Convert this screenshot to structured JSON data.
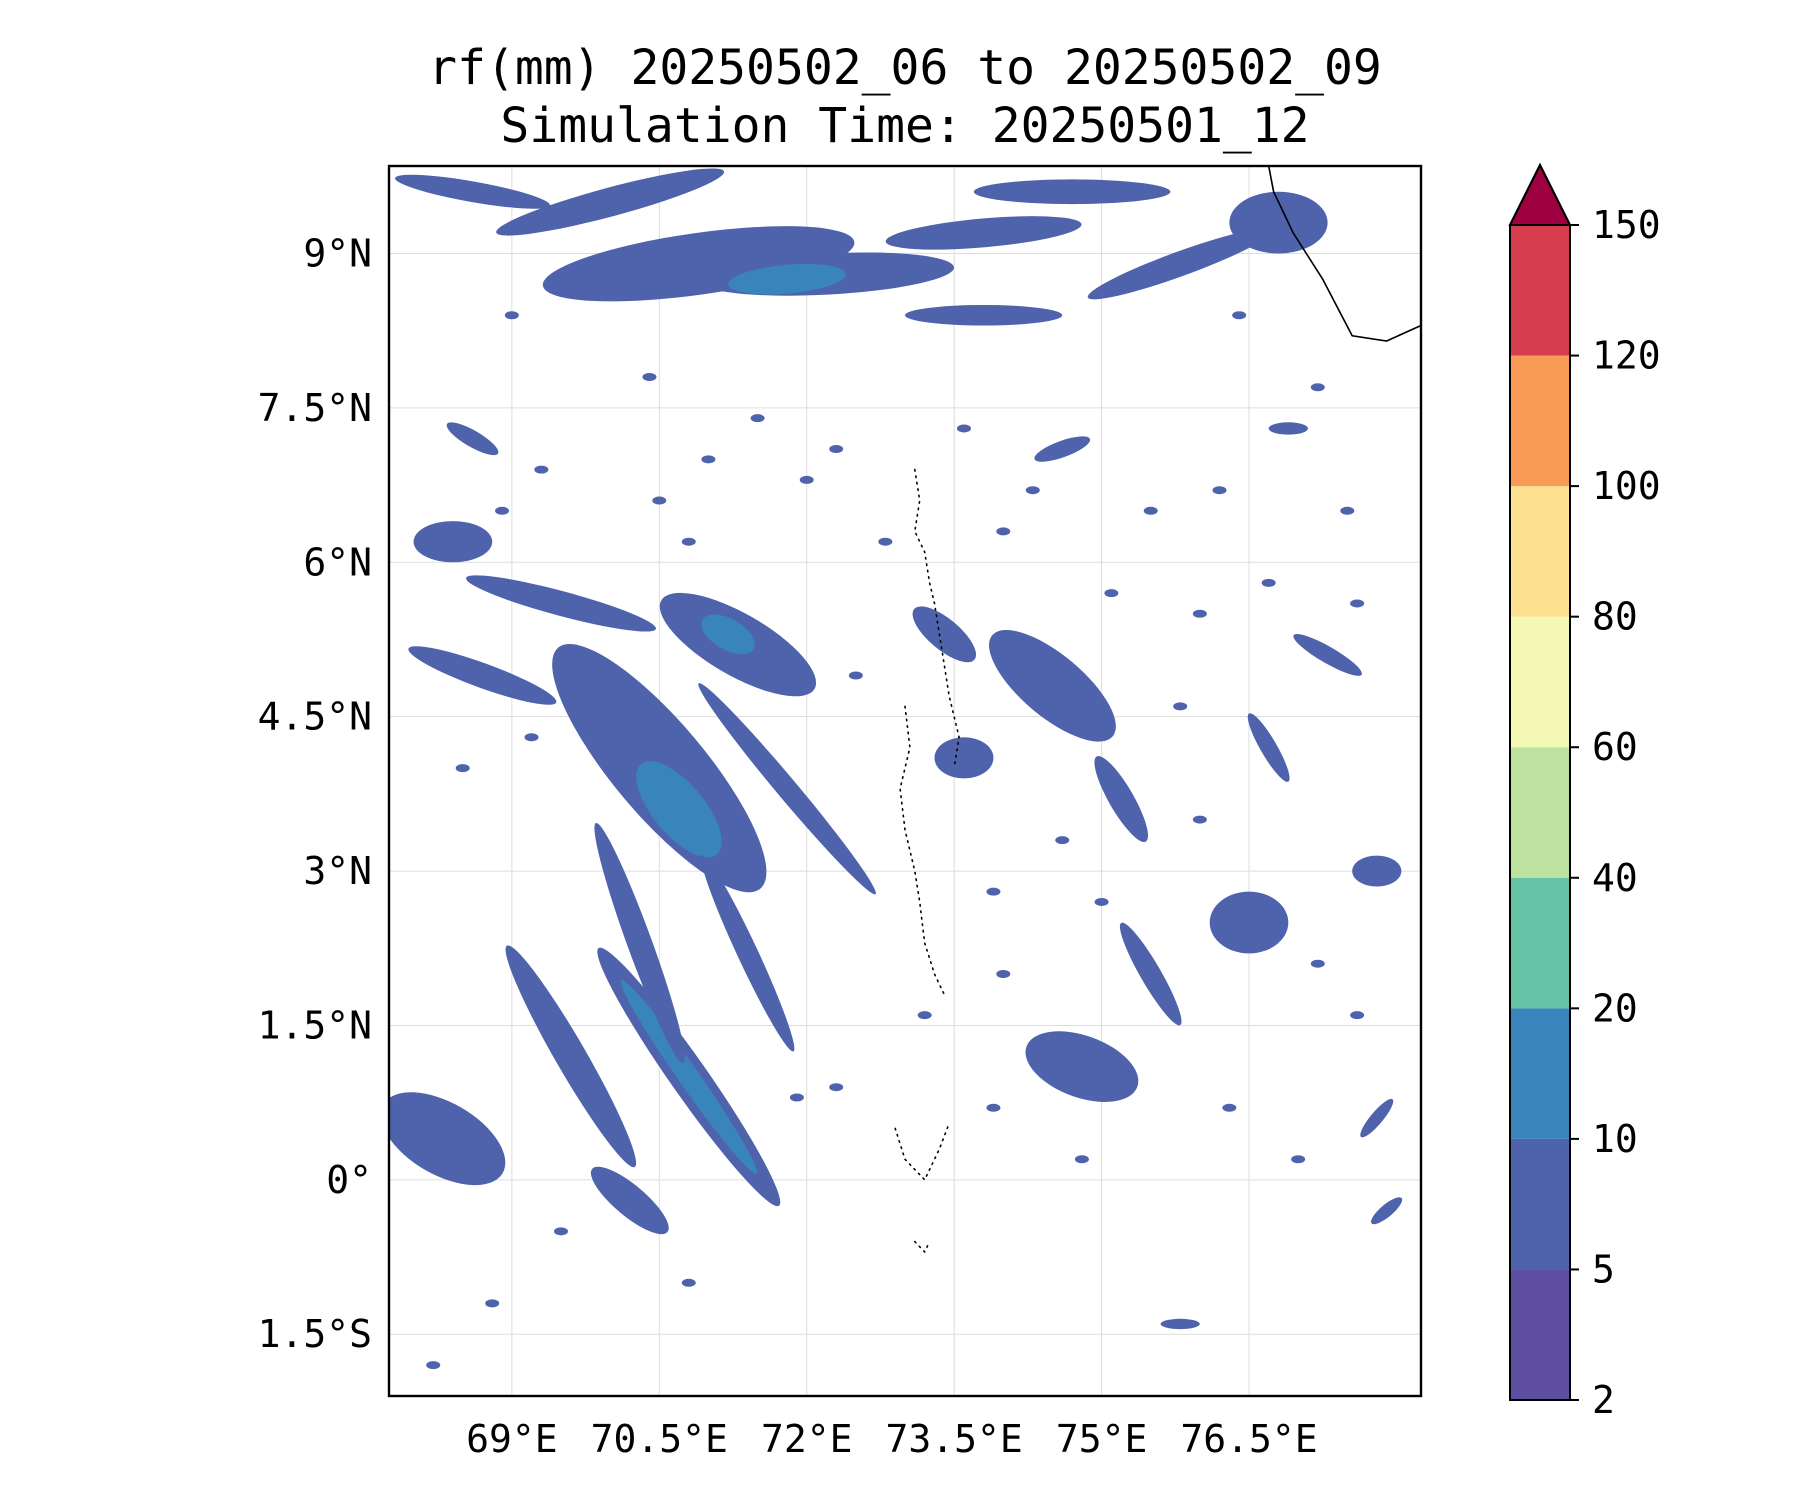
{
  "title": {
    "line1": "rf(mm) 20250502_06 to 20250502_09",
    "line2": "Simulation Time: 20250501_12"
  },
  "map": {
    "lon_range": [
      67.75,
      78.25
    ],
    "lat_range": [
      -2.1,
      9.85
    ],
    "lon_ticks": [
      {
        "value": 69.0,
        "label": "69°E"
      },
      {
        "value": 70.5,
        "label": "70.5°E"
      },
      {
        "value": 72.0,
        "label": "72°E"
      },
      {
        "value": 73.5,
        "label": "73.5°E"
      },
      {
        "value": 75.0,
        "label": "75°E"
      },
      {
        "value": 76.5,
        "label": "76.5°E"
      }
    ],
    "lat_ticks": [
      {
        "value": 9.0,
        "label": "9°N"
      },
      {
        "value": 7.5,
        "label": "7.5°N"
      },
      {
        "value": 6.0,
        "label": "6°N"
      },
      {
        "value": 4.5,
        "label": "4.5°N"
      },
      {
        "value": 3.0,
        "label": "3°N"
      },
      {
        "value": 1.5,
        "label": "1.5°N"
      },
      {
        "value": 0.0,
        "label": "0°"
      },
      {
        "value": -1.5,
        "label": "1.5°S"
      }
    ],
    "gridlines": true,
    "coastline_india": [
      [
        76.7,
        9.85
      ],
      [
        76.75,
        9.6
      ],
      [
        76.95,
        9.2
      ],
      [
        77.25,
        8.75
      ],
      [
        77.55,
        8.2
      ],
      [
        77.9,
        8.15
      ],
      [
        78.25,
        8.3
      ]
    ],
    "maldives_atoll_lines": [
      [
        [
          73.1,
          6.9
        ],
        [
          73.15,
          6.6
        ],
        [
          73.1,
          6.3
        ],
        [
          73.2,
          6.1
        ],
        [
          73.25,
          5.8
        ],
        [
          73.3,
          5.6
        ],
        [
          73.35,
          5.3
        ],
        [
          73.4,
          5.0
        ],
        [
          73.45,
          4.7
        ],
        [
          73.55,
          4.3
        ],
        [
          73.5,
          4.0
        ]
      ],
      [
        [
          73.0,
          4.6
        ],
        [
          73.05,
          4.2
        ],
        [
          72.95,
          3.8
        ],
        [
          73.0,
          3.4
        ],
        [
          73.1,
          3.0
        ],
        [
          73.15,
          2.7
        ],
        [
          73.2,
          2.3
        ],
        [
          73.3,
          2.0
        ],
        [
          73.4,
          1.8
        ]
      ],
      [
        [
          72.9,
          0.5
        ],
        [
          73.0,
          0.2
        ],
        [
          73.2,
          0.0
        ],
        [
          73.35,
          0.3
        ],
        [
          73.45,
          0.55
        ]
      ],
      [
        [
          73.1,
          -0.6
        ],
        [
          73.2,
          -0.7
        ],
        [
          73.25,
          -0.6
        ]
      ]
    ],
    "rain_cells": [
      {
        "lon": 70.9,
        "lat": 8.9,
        "rx": 1.6,
        "ry": 0.3,
        "rot": -8,
        "level": 1
      },
      {
        "lon": 72.2,
        "lat": 8.8,
        "rx": 1.3,
        "ry": 0.2,
        "rot": -3,
        "level": 1
      },
      {
        "lon": 71.8,
        "lat": 8.75,
        "rx": 0.6,
        "ry": 0.14,
        "rot": -5,
        "level": 2
      },
      {
        "lon": 70.0,
        "lat": 9.5,
        "rx": 1.2,
        "ry": 0.14,
        "rot": -15,
        "level": 1
      },
      {
        "lon": 73.8,
        "lat": 9.2,
        "rx": 1.0,
        "ry": 0.14,
        "rot": -5,
        "level": 1
      },
      {
        "lon": 68.6,
        "lat": 9.6,
        "rx": 0.8,
        "ry": 0.1,
        "rot": 10,
        "level": 1
      },
      {
        "lon": 75.8,
        "lat": 8.9,
        "rx": 1.0,
        "ry": 0.12,
        "rot": -20,
        "level": 1
      },
      {
        "lon": 76.8,
        "lat": 9.3,
        "rx": 0.5,
        "ry": 0.3,
        "rot": 0,
        "level": 1
      },
      {
        "lon": 73.8,
        "lat": 8.4,
        "rx": 0.8,
        "ry": 0.1,
        "rot": 0,
        "level": 1
      },
      {
        "lon": 74.7,
        "lat": 9.6,
        "rx": 1.0,
        "ry": 0.12,
        "rot": 0,
        "level": 1
      },
      {
        "lon": 70.5,
        "lat": 4.0,
        "rx": 1.6,
        "ry": 0.45,
        "rot": 50,
        "level": 1
      },
      {
        "lon": 70.7,
        "lat": 3.6,
        "rx": 0.6,
        "ry": 0.25,
        "rot": 50,
        "level": 2
      },
      {
        "lon": 71.3,
        "lat": 5.2,
        "rx": 0.9,
        "ry": 0.3,
        "rot": 30,
        "level": 1
      },
      {
        "lon": 71.2,
        "lat": 5.3,
        "rx": 0.3,
        "ry": 0.15,
        "rot": 30,
        "level": 2
      },
      {
        "lon": 70.8,
        "lat": 1.0,
        "rx": 1.6,
        "ry": 0.18,
        "rot": 55,
        "level": 1
      },
      {
        "lon": 70.8,
        "lat": 1.0,
        "rx": 1.2,
        "ry": 0.1,
        "rot": 55,
        "level": 2
      },
      {
        "lon": 69.6,
        "lat": 1.2,
        "rx": 1.3,
        "ry": 0.15,
        "rot": 60,
        "level": 1
      },
      {
        "lon": 70.3,
        "lat": 2.3,
        "rx": 1.3,
        "ry": 0.12,
        "rot": 70,
        "level": 1
      },
      {
        "lon": 71.8,
        "lat": 3.8,
        "rx": 1.4,
        "ry": 0.1,
        "rot": 50,
        "level": 1
      },
      {
        "lon": 71.4,
        "lat": 2.2,
        "rx": 1.1,
        "ry": 0.1,
        "rot": 65,
        "level": 1
      },
      {
        "lon": 68.3,
        "lat": 0.4,
        "rx": 0.7,
        "ry": 0.35,
        "rot": 30,
        "level": 1
      },
      {
        "lon": 68.7,
        "lat": 4.9,
        "rx": 0.8,
        "ry": 0.12,
        "rot": 20,
        "level": 1
      },
      {
        "lon": 68.4,
        "lat": 6.2,
        "rx": 0.4,
        "ry": 0.2,
        "rot": 0,
        "level": 1
      },
      {
        "lon": 69.5,
        "lat": 5.6,
        "rx": 1.0,
        "ry": 0.12,
        "rot": 15,
        "level": 1
      },
      {
        "lon": 74.5,
        "lat": 4.8,
        "rx": 0.8,
        "ry": 0.3,
        "rot": 40,
        "level": 1
      },
      {
        "lon": 73.4,
        "lat": 5.3,
        "rx": 0.4,
        "ry": 0.15,
        "rot": 40,
        "level": 1
      },
      {
        "lon": 73.6,
        "lat": 4.1,
        "rx": 0.3,
        "ry": 0.2,
        "rot": 0,
        "level": 1
      },
      {
        "lon": 76.5,
        "lat": 2.5,
        "rx": 0.4,
        "ry": 0.3,
        "rot": 0,
        "level": 1
      },
      {
        "lon": 74.8,
        "lat": 1.1,
        "rx": 0.6,
        "ry": 0.3,
        "rot": 20,
        "level": 1
      },
      {
        "lon": 75.2,
        "lat": 3.7,
        "rx": 0.5,
        "ry": 0.12,
        "rot": 60,
        "level": 1
      },
      {
        "lon": 75.5,
        "lat": 2.0,
        "rx": 0.6,
        "ry": 0.1,
        "rot": 60,
        "level": 1
      },
      {
        "lon": 77.8,
        "lat": 3.0,
        "rx": 0.25,
        "ry": 0.15,
        "rot": 0,
        "level": 1
      },
      {
        "lon": 77.3,
        "lat": 5.1,
        "rx": 0.4,
        "ry": 0.08,
        "rot": 30,
        "level": 1
      },
      {
        "lon": 76.7,
        "lat": 4.2,
        "rx": 0.4,
        "ry": 0.08,
        "rot": 60,
        "level": 1
      },
      {
        "lon": 68.6,
        "lat": 7.2,
        "rx": 0.3,
        "ry": 0.08,
        "rot": 30,
        "level": 1
      },
      {
        "lon": 74.6,
        "lat": 7.1,
        "rx": 0.3,
        "ry": 0.08,
        "rot": -20,
        "level": 1
      },
      {
        "lon": 76.9,
        "lat": 7.3,
        "rx": 0.2,
        "ry": 0.06,
        "rot": 0,
        "level": 1
      },
      {
        "lon": 70.2,
        "lat": -0.2,
        "rx": 0.5,
        "ry": 0.15,
        "rot": 40,
        "level": 1
      },
      {
        "lon": 75.8,
        "lat": -1.4,
        "rx": 0.2,
        "ry": 0.05,
        "rot": 0,
        "level": 1
      },
      {
        "lon": 77.9,
        "lat": -0.3,
        "rx": 0.2,
        "ry": 0.06,
        "rot": -40,
        "level": 1
      },
      {
        "lon": 77.8,
        "lat": 0.6,
        "rx": 0.25,
        "ry": 0.06,
        "rot": -50,
        "level": 1
      }
    ],
    "rain_specks": [
      [
        72.0,
        6.8
      ],
      [
        71.0,
        7.0
      ],
      [
        70.5,
        6.6
      ],
      [
        69.3,
        6.9
      ],
      [
        71.5,
        7.4
      ],
      [
        72.3,
        7.1
      ],
      [
        74.3,
        6.7
      ],
      [
        75.5,
        6.5
      ],
      [
        76.2,
        6.7
      ],
      [
        77.5,
        6.5
      ],
      [
        68.9,
        6.5
      ],
      [
        70.8,
        6.2
      ],
      [
        72.8,
        6.2
      ],
      [
        74.0,
        6.3
      ],
      [
        75.1,
        5.7
      ],
      [
        76.0,
        5.5
      ],
      [
        76.7,
        5.8
      ],
      [
        77.6,
        5.6
      ],
      [
        68.5,
        4.0
      ],
      [
        69.2,
        4.3
      ],
      [
        72.5,
        4.9
      ],
      [
        75.8,
        4.6
      ],
      [
        76.0,
        3.5
      ],
      [
        74.6,
        3.3
      ],
      [
        73.9,
        2.8
      ],
      [
        75.0,
        2.7
      ],
      [
        77.2,
        2.1
      ],
      [
        77.6,
        1.6
      ],
      [
        74.0,
        2.0
      ],
      [
        72.3,
        0.9
      ],
      [
        71.9,
        0.8
      ],
      [
        76.3,
        0.7
      ],
      [
        77.0,
        0.2
      ],
      [
        74.8,
        0.2
      ],
      [
        69.5,
        -0.5
      ],
      [
        70.8,
        -1.0
      ],
      [
        68.8,
        -1.2
      ],
      [
        73.6,
        7.3
      ],
      [
        76.4,
        8.4
      ],
      [
        77.2,
        7.7
      ],
      [
        69.0,
        8.4
      ],
      [
        70.4,
        7.8
      ],
      [
        73.2,
        1.6
      ],
      [
        68.2,
        -1.8
      ],
      [
        73.9,
        0.7
      ]
    ]
  },
  "colorbar": {
    "levels": [
      2,
      5,
      10,
      20,
      40,
      60,
      80,
      100,
      120,
      150
    ],
    "tick_labels": [
      "2",
      "5",
      "10",
      "20",
      "40",
      "60",
      "80",
      "100",
      "120",
      "150"
    ],
    "colors": [
      "#5e4fa2",
      "#4e63ac",
      "#3a84bc",
      "#66c2a5",
      "#bde29f",
      "#f3f8b2",
      "#fde090",
      "#f99b57",
      "#d63e4f"
    ],
    "extend_color": "#9e0142",
    "extend": "max"
  }
}
